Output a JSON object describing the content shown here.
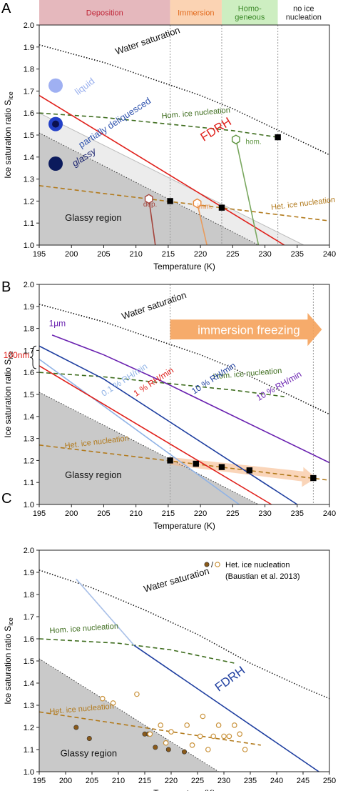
{
  "chart_data": [
    {
      "type": "line",
      "panel": "A",
      "xlabel": "Temperature (K)",
      "ylabel": "Ice saturation ratio S",
      "ylabel_sub": "ice",
      "xlim": [
        195,
        240
      ],
      "ylim": [
        1,
        2
      ],
      "xticks": [
        195,
        200,
        205,
        210,
        215,
        220,
        225,
        230,
        235,
        240
      ],
      "yticks": [
        {
          "value": 1,
          "label": "1.0"
        },
        1.1,
        1.2,
        1.3,
        1.4,
        1.5,
        1.6,
        1.7,
        1.8,
        1.9,
        {
          "value": 2,
          "label": "2.0"
        }
      ],
      "regions": [
        {
          "label": [
            "Deposition"
          ],
          "color": "#e5b8bd",
          "text_color": "#c0283a",
          "x": [
            195,
            215.3
          ]
        },
        {
          "label": [
            "Immersion"
          ],
          "color": "#fbd3b3",
          "text_color": "#e26a1c",
          "x": [
            215.3,
            223.3
          ]
        },
        {
          "label": [
            "Homo-",
            "geneous"
          ],
          "color": "#cdeec1",
          "text_color": "#3d8a2a",
          "x": [
            223.3,
            232
          ]
        },
        {
          "label": [
            "no ice",
            "nucleation"
          ],
          "color": "#ffffff",
          "text_color": "#222222",
          "x": [
            232,
            240
          ]
        }
      ],
      "vlines": [
        215.3,
        223.3,
        232
      ],
      "series": [
        {
          "color": "#bbbbbb",
          "x": [
            195,
            236
          ],
          "values": [
            1.6,
            1.0
          ],
          "fill": "#ececec",
          "dash": "solid"
        },
        {
          "color": "#333333",
          "x": [
            195,
            229
          ],
          "values": [
            1.51,
            1.0
          ],
          "fill": "#c9c9c9",
          "dash": "dotted"
        },
        {
          "color": "#111111",
          "x": [
            195,
            200,
            205,
            210,
            215,
            220,
            225,
            230,
            235,
            240
          ],
          "values": [
            1.91,
            1.87,
            1.83,
            1.78,
            1.73,
            1.68,
            1.62,
            1.55,
            1.48,
            1.41
          ],
          "dash": "dotted"
        },
        {
          "color": "#3e6d1e",
          "x": [
            195,
            205,
            215,
            225,
            232
          ],
          "values": [
            1.6,
            1.58,
            1.55,
            1.52,
            1.49
          ],
          "dash": "dashed"
        },
        {
          "color": "#b27a1c",
          "x": [
            195,
            240
          ],
          "values": [
            1.27,
            1.11
          ],
          "dash": "dashed"
        },
        {
          "color": "#e0201b",
          "x": [
            195,
            233
          ],
          "values": [
            1.68,
            1.0
          ],
          "dash": "solid"
        },
        {
          "color": "#a4443c",
          "x": [
            212,
            213
          ],
          "values": [
            1.21,
            1.0
          ],
          "dash": "solid"
        },
        {
          "color": "#e99b5c",
          "x": [
            219.5,
            221
          ],
          "values": [
            1.19,
            1.0
          ],
          "dash": "solid"
        },
        {
          "color": "#7aa860",
          "x": [
            225.5,
            229
          ],
          "values": [
            1.48,
            1.0
          ],
          "dash": "solid"
        }
      ],
      "points": [
        {
          "marker": "hexagon",
          "color": "#a4443c",
          "filled": false,
          "x": [
            212
          ],
          "values": [
            1.21
          ]
        },
        {
          "marker": "hexagon",
          "color": "#e9893c",
          "filled": false,
          "x": [
            219.5
          ],
          "values": [
            1.19
          ]
        },
        {
          "marker": "hexagon",
          "color": "#5e9440",
          "filled": false,
          "x": [
            225.5
          ],
          "values": [
            1.48
          ]
        },
        {
          "marker": "square",
          "color": "#000000",
          "filled": true,
          "x": [
            215.3,
            223.3,
            232
          ],
          "values": [
            1.2,
            1.17,
            1.49
          ]
        }
      ],
      "labels": [
        "Water saturation",
        "Hom. ice nucleation",
        "Het. ice nucleation",
        "liquid",
        "partially deliquesced",
        "glassy",
        "FDRH",
        "Glassy region",
        "dep.",
        "imm.",
        "hom."
      ]
    },
    {
      "type": "line",
      "panel": "B",
      "xlabel": "Temperature (K)",
      "ylabel": "Ice saturation ratio S",
      "ylabel_sub": "ice",
      "xlim": [
        195,
        240
      ],
      "ylim": [
        1,
        2
      ],
      "xticks": [
        195,
        200,
        205,
        210,
        215,
        220,
        225,
        230,
        235,
        240
      ],
      "yticks": [
        {
          "value": 1,
          "label": "1.0"
        },
        1.1,
        1.2,
        1.3,
        1.4,
        1.5,
        1.6,
        1.7,
        1.8,
        1.9,
        {
          "value": 2,
          "label": "2.0"
        }
      ],
      "vlines": [
        215.3,
        237.5
      ],
      "series": [
        {
          "color": "#333333",
          "x": [
            195,
            229
          ],
          "values": [
            1.51,
            1.0
          ],
          "fill": "#c9c9c9",
          "dash": "dotted"
        },
        {
          "color": "#111111",
          "x": [
            195,
            200,
            205,
            210,
            215,
            220,
            225,
            230,
            235,
            240
          ],
          "values": [
            1.91,
            1.87,
            1.83,
            1.78,
            1.73,
            1.68,
            1.62,
            1.55,
            1.48,
            1.41
          ],
          "dash": "dotted"
        },
        {
          "color": "#3e6d1e",
          "x": [
            195,
            205,
            215,
            225,
            233
          ],
          "values": [
            1.6,
            1.58,
            1.55,
            1.52,
            1.49
          ],
          "dash": "dashed"
        },
        {
          "color": "#b27a1c",
          "x": [
            195,
            240
          ],
          "values": [
            1.27,
            1.11
          ],
          "dash": "dashed"
        },
        {
          "color": "#90b3e6",
          "x": [
            195,
            226
          ],
          "values": [
            1.66,
            1.0
          ],
          "dash": "solid"
        },
        {
          "color": "#e0201b",
          "x": [
            195,
            231
          ],
          "values": [
            1.63,
            1.0
          ],
          "dash": "solid"
        },
        {
          "color": "#1f3fa0",
          "x": [
            195,
            205,
            235
          ],
          "values": [
            1.72,
            1.57,
            1.0
          ],
          "dash": "solid"
        },
        {
          "color": "#6a22b0",
          "x": [
            197,
            205,
            214,
            240
          ],
          "values": [
            1.77,
            1.68,
            1.56,
            1.19
          ],
          "dash": "solid"
        }
      ],
      "points": [
        {
          "marker": "square",
          "color": "#000000",
          "filled": true,
          "x": [
            215.3,
            219.3,
            223.3,
            227.6,
            237.5
          ],
          "values": [
            1.2,
            1.185,
            1.17,
            1.155,
            1.12
          ]
        }
      ],
      "labels": [
        "Water saturation",
        "Hom. ice nucleation",
        "Het. ice nucleation",
        "Glassy region",
        "1µm",
        "100nm",
        "0.1 % RH/min",
        "1 % RH/min",
        "10 % RH/min",
        "10 % RH/min",
        "immersion freezing"
      ]
    },
    {
      "type": "line",
      "panel": "C",
      "xlabel": "Temperature (K)",
      "ylabel": "Ice saturation ratio S",
      "ylabel_sub": "ice",
      "xlim": [
        195,
        250
      ],
      "ylim": [
        1,
        2
      ],
      "xticks": [
        195,
        200,
        205,
        210,
        215,
        220,
        225,
        230,
        235,
        240,
        245,
        250
      ],
      "yticks": [
        {
          "value": 1,
          "label": "1.0"
        },
        1.1,
        1.2,
        1.3,
        1.4,
        1.5,
        1.6,
        1.7,
        1.8,
        1.9,
        {
          "value": 2,
          "label": "2.0"
        }
      ],
      "series": [
        {
          "color": "#333333",
          "x": [
            195,
            229
          ],
          "values": [
            1.51,
            1.0
          ],
          "fill": "#c9c9c9",
          "dash": "dotted"
        },
        {
          "color": "#111111",
          "x": [
            195,
            205,
            215,
            225,
            235,
            245,
            250
          ],
          "values": [
            1.91,
            1.83,
            1.73,
            1.62,
            1.49,
            1.38,
            1.33
          ],
          "dash": "dotted"
        },
        {
          "color": "#3e6d1e",
          "x": [
            195,
            210,
            220,
            232
          ],
          "values": [
            1.6,
            1.58,
            1.55,
            1.49
          ],
          "dash": "dashed"
        },
        {
          "color": "#b27a1c",
          "x": [
            195,
            237
          ],
          "values": [
            1.27,
            1.12
          ],
          "dash": "dashed"
        },
        {
          "color": "#a9c0e8",
          "x": [
            202,
            213
          ],
          "values": [
            1.87,
            1.57
          ],
          "dash": "solid"
        },
        {
          "color": "#1f3fa0",
          "x": [
            213,
            248
          ],
          "values": [
            1.57,
            1.0
          ],
          "dash": "solid"
        }
      ],
      "points": [
        {
          "marker": "circle",
          "color": "#8a5a1a",
          "filled": true,
          "x": [
            202,
            204.5,
            215,
            215.7,
            217,
            219.5,
            222.5
          ],
          "values": [
            1.2,
            1.15,
            1.17,
            1.17,
            1.11,
            1.1,
            1.09
          ]
        },
        {
          "marker": "circle",
          "color": "#c9923a",
          "filled": false,
          "x": [
            207,
            209,
            213.5,
            216,
            218,
            219,
            220,
            223,
            224,
            225.5,
            226,
            227,
            228,
            229,
            230,
            231,
            232,
            233,
            234
          ],
          "values": [
            1.33,
            1.31,
            1.35,
            1.17,
            1.21,
            1.13,
            1.18,
            1.21,
            1.12,
            1.16,
            1.25,
            1.1,
            1.16,
            1.21,
            1.16,
            1.16,
            1.21,
            1.17,
            1.1
          ]
        }
      ],
      "legend": {
        "separator": "/",
        "label": "Het. ice nucleation",
        "source": "(Baustian et al. 2013)"
      },
      "labels": [
        "Water saturation",
        "Hom. ice nucleation",
        "Het. ice nucleation",
        "FDRH",
        "Glassy region"
      ]
    }
  ]
}
